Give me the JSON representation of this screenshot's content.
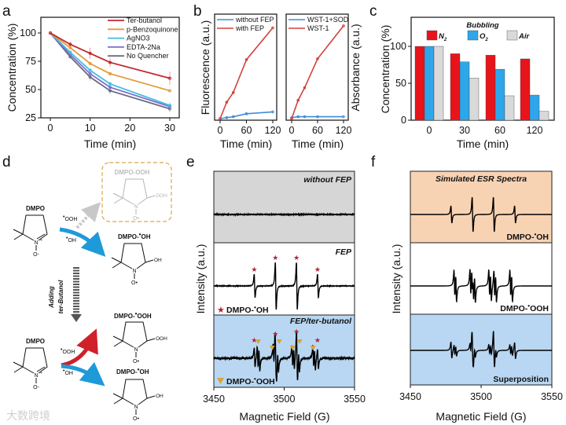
{
  "panel_labels": {
    "a": "a",
    "b": "b",
    "c": "c",
    "d": "d",
    "e": "e",
    "f": "f"
  },
  "watermark": "大数跨境",
  "chart_data": [
    {
      "id": "a",
      "type": "line",
      "xlabel": "Time (min)",
      "ylabel": "Concentration (%)",
      "xlim": [
        -3,
        33
      ],
      "ylim": [
        25,
        115
      ],
      "xticks": [
        0,
        10,
        20,
        30
      ],
      "yticks": [
        25,
        50,
        75,
        100
      ],
      "legend_position": "top-right",
      "x": [
        0,
        5,
        10,
        15,
        30
      ],
      "series": [
        {
          "name": "Ter-butanol",
          "color": "#c0282d",
          "values": [
            100,
            90,
            82,
            74,
            60
          ],
          "errors": [
            0,
            2,
            5,
            4,
            6
          ]
        },
        {
          "name": "p-Benzoquinone",
          "color": "#e39a3b",
          "values": [
            100,
            87,
            73,
            64,
            49
          ],
          "errors": [
            0,
            1,
            1,
            1,
            1
          ]
        },
        {
          "name": "AgNO3",
          "color": "#45bde0",
          "values": [
            100,
            83,
            67,
            55,
            36
          ],
          "errors": [
            0,
            1,
            2,
            2,
            3
          ]
        },
        {
          "name": "EDTA-2Na",
          "color": "#7c6fd2",
          "values": [
            100,
            81,
            64,
            52,
            35
          ],
          "errors": [
            0,
            1,
            2,
            2,
            2
          ]
        },
        {
          "name": "No Quencher",
          "color": "#6b6b80",
          "values": [
            100,
            79,
            61,
            49,
            33
          ],
          "errors": [
            0,
            1,
            3,
            3,
            3
          ]
        }
      ]
    },
    {
      "id": "b1",
      "type": "line",
      "xlabel": "Time (min)",
      "ylabel": "Fluorescence (a.u.)",
      "xlim": [
        -8,
        128
      ],
      "ylim": [
        -2,
        100
      ],
      "xticks": [
        0,
        60,
        120
      ],
      "legend_position": "top-left",
      "x": [
        0,
        15,
        30,
        60,
        120
      ],
      "series": [
        {
          "name": "without FEP",
          "color": "#3d8ed8",
          "values": [
            0,
            1,
            2,
            5,
            7
          ]
        },
        {
          "name": "with FEP",
          "color": "#d2423c",
          "values": [
            0,
            17,
            27,
            61,
            94
          ]
        }
      ]
    },
    {
      "id": "b2",
      "type": "line",
      "xlabel": "Time (min)",
      "ylabel": "Absorbance (a.u.)",
      "xlim": [
        -8,
        128
      ],
      "ylim": [
        -2,
        100
      ],
      "xticks": [
        0,
        60,
        120
      ],
      "legend_position": "top-left",
      "x": [
        0,
        15,
        30,
        60,
        120
      ],
      "series": [
        {
          "name": "WST-1+SOD",
          "color": "#3d8ed8",
          "values": [
            1,
            2,
            2,
            2,
            2
          ]
        },
        {
          "name": "WST-1",
          "color": "#d2423c",
          "values": [
            0,
            19,
            32,
            62,
            96
          ]
        }
      ]
    },
    {
      "id": "c",
      "type": "bar",
      "xlabel": "Time (min)",
      "ylabel": "Concentration (%)",
      "ylim": [
        0,
        138
      ],
      "yticks": [
        0,
        50,
        100
      ],
      "legend_title": "Bubbling",
      "legend_position": "top",
      "categories": [
        "0",
        "30",
        "60",
        "120"
      ],
      "series": [
        {
          "name": "N",
          "sub": "2",
          "color": "#e8141b",
          "values": [
            100,
            90,
            88,
            83
          ]
        },
        {
          "name": "O",
          "sub": "2",
          "color": "#2ea6ea",
          "values": [
            100,
            79,
            69,
            34
          ]
        },
        {
          "name": "Air",
          "sub": "",
          "color": "#d9d9d9",
          "values": [
            100,
            57,
            33,
            12
          ]
        }
      ]
    },
    {
      "id": "e",
      "type": "line",
      "xlabel": "Magnetic Field (G)",
      "ylabel": "Intensity (a.u.)",
      "xlim": [
        3450,
        3550
      ],
      "xticks": [
        3450,
        3500,
        3550
      ],
      "panels": [
        {
          "label": "without FEP",
          "color": "#d6d6d6",
          "spectrum": "noise"
        },
        {
          "label": "FEP",
          "color": "#ffffff",
          "spectrum": "DMPO-OH"
        },
        {
          "label": "FEP/ter-butanol",
          "color": "#b9d7f2",
          "spectrum": "DMPO-OH+DMPO-OOH"
        }
      ],
      "markers": {
        "star": {
          "label": "DMPO-",
          "radical": "OH",
          "color": "#b0243a",
          "fields": [
            3479,
            3494,
            3509,
            3524
          ]
        },
        "triangle": {
          "label": "DMPO-",
          "radical": "OOH",
          "color": "#d9a23a",
          "fields": [
            3481.5,
            3491.5,
            3496.5,
            3506,
            3511,
            3520.5
          ]
        }
      }
    },
    {
      "id": "f",
      "type": "line",
      "title": "Simulated ESR Spectra",
      "xlabel": "Magnetic Field (G)",
      "ylabel": "Intensity (a.u.)",
      "xlim": [
        3450,
        3550
      ],
      "xticks": [
        3450,
        3500,
        3550
      ],
      "panels": [
        {
          "label_prefix": "DMPO-",
          "label_radical": "OH",
          "color": "#f8d3b3",
          "spectrum": "DMPO-OH"
        },
        {
          "label_prefix": "DMPO-",
          "label_radical": "OOH",
          "color": "#ffffff",
          "spectrum": "DMPO-OOH"
        },
        {
          "label": "Superposition",
          "color": "#b9d7f2",
          "spectrum": "DMPO-OH+DMPO-OOH"
        }
      ],
      "hyperfine": {
        "DMPO-OH": {
          "aN": 14.9,
          "aH": 14.9
        },
        "DMPO-OOH": {
          "aN": 14.1,
          "aH_beta": 11.3,
          "aH_gamma": 1.2
        },
        "center_field": 3501.5
      }
    }
  ],
  "scheme": {
    "dmpo": "DMPO",
    "dmpo_ooh_blocked": "DMPO-OOH",
    "dmpo_oh_product": "DMPO-",
    "radical_oh": "OH",
    "radical_ooh": "OOH",
    "dot": "•",
    "adding": "Adding",
    "ter_butanol": "ter-Butanol",
    "n": "N",
    "plus": "+",
    "o_minus": "O-",
    "o_dot": "O•",
    "oh": "OH",
    "ooh": "OOH"
  }
}
